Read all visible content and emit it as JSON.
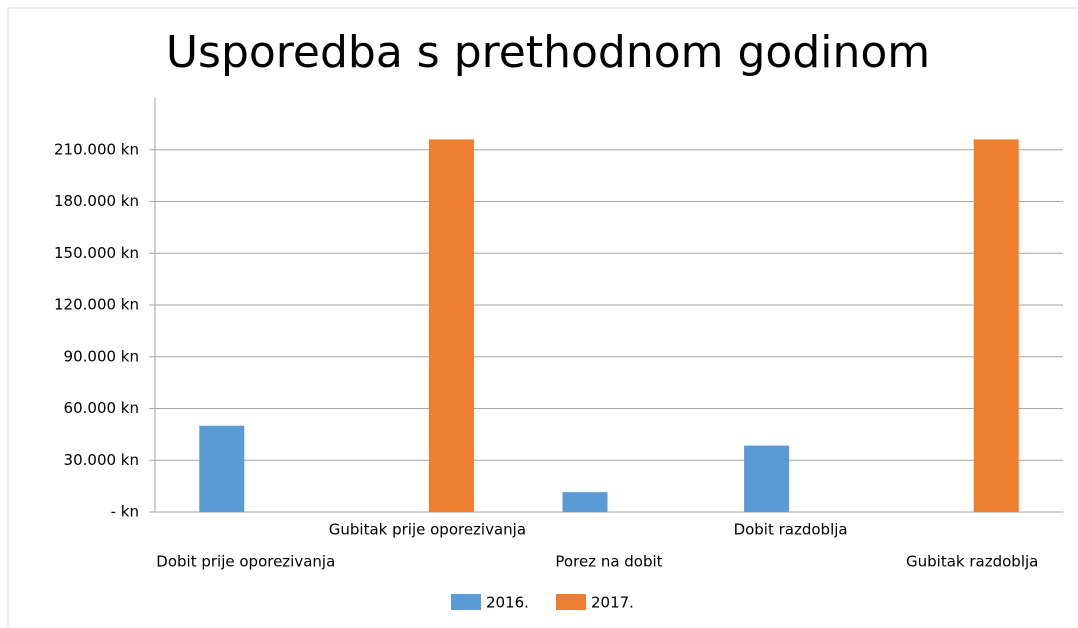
{
  "chart_data": {
    "type": "bar",
    "title": "Usporedba s prethodnom godinom",
    "categories": [
      "Dobit prije oporezivanja",
      "Gubitak prije oporezivanja",
      "Porez na dobit",
      "Dobit razdoblja",
      "Gubitak razdoblja"
    ],
    "series": [
      {
        "name": "2016.",
        "color": "#5b9bd5",
        "values": [
          50000,
          0,
          11500,
          38500,
          0
        ]
      },
      {
        "name": "2017.",
        "color": "#ed7d31",
        "values": [
          0,
          216000,
          0,
          0,
          216000
        ]
      }
    ],
    "ylim": [
      0,
      240000
    ],
    "yticks": [
      {
        "value": 0,
        "label": "- kn"
      },
      {
        "value": 30000,
        "label": "30.000 kn"
      },
      {
        "value": 60000,
        "label": "60.000 kn"
      },
      {
        "value": 90000,
        "label": "90.000 kn"
      },
      {
        "value": 120000,
        "label": "120.000 kn"
      },
      {
        "value": 150000,
        "label": "150.000 kn"
      },
      {
        "value": 180000,
        "label": "180.000 kn"
      },
      {
        "value": 210000,
        "label": "210.000 kn"
      }
    ],
    "grid": true,
    "legend": "bottom"
  }
}
